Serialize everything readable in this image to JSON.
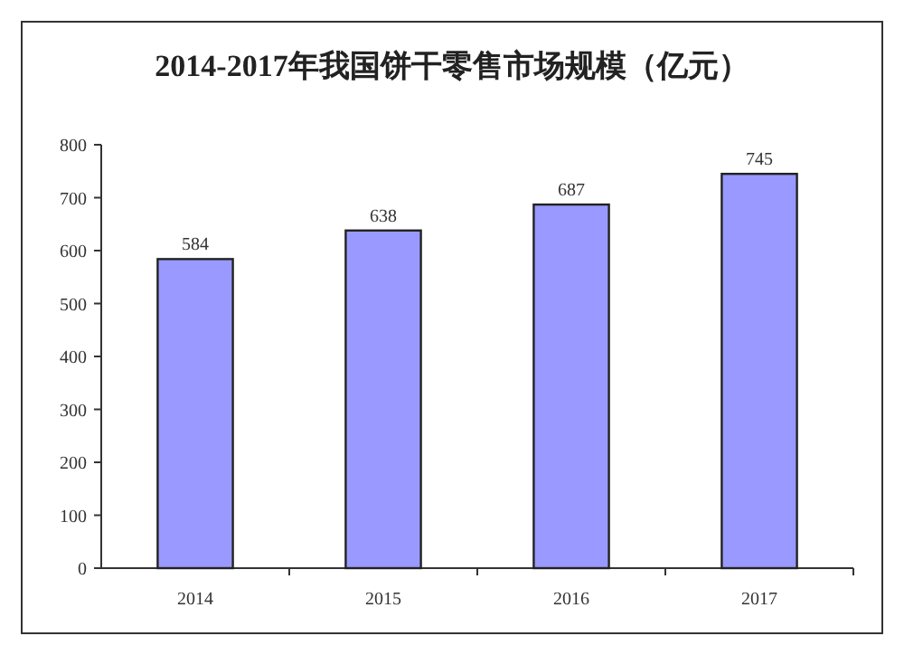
{
  "chart_data": {
    "type": "bar",
    "title": "2014-2017年我国饼干零售市场规模（亿元）",
    "categories": [
      "2014",
      "2015",
      "2016",
      "2017"
    ],
    "values": [
      584,
      638,
      687,
      745
    ],
    "color": "#9999ff",
    "data_labels": true,
    "ylim": [
      0,
      800
    ],
    "yticks": [
      0,
      100,
      200,
      300,
      400,
      500,
      600,
      700,
      800
    ],
    "grid": false
  }
}
